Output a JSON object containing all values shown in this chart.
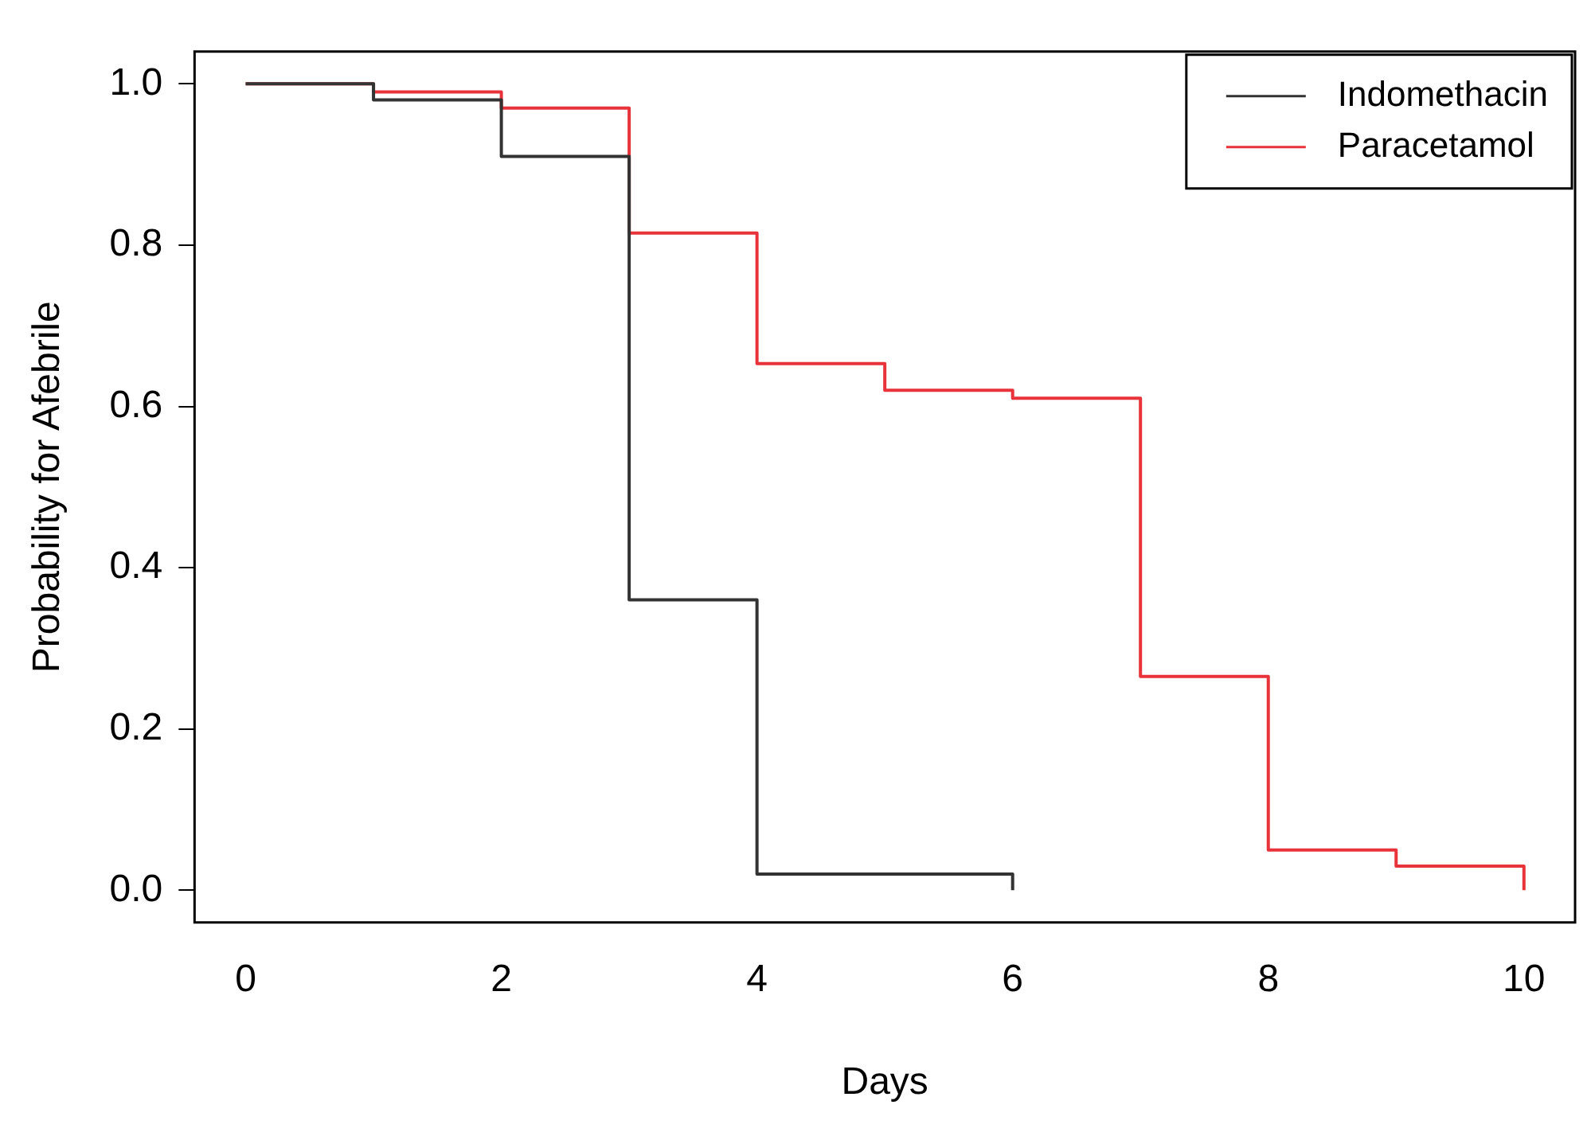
{
  "chart_data": {
    "type": "step",
    "xlabel": "Days",
    "ylabel": "Probability for Afebrile",
    "xlim": [
      -0.4,
      10.4
    ],
    "xticks": [
      0,
      2,
      4,
      6,
      8,
      10
    ],
    "ylim": [
      -0.04,
      1.04
    ],
    "yticks": [
      {
        "value": 0,
        "label": "0.0"
      },
      {
        "value": 0.2,
        "label": "0.2"
      },
      {
        "value": 0.4,
        "label": "0.4"
      },
      {
        "value": 0.6,
        "label": "0.6"
      },
      {
        "value": 0.8,
        "label": "0.8"
      },
      {
        "value": 1,
        "label": "1.0"
      }
    ],
    "grid": false,
    "legend": "top right",
    "marker": "none",
    "line_style": "solid",
    "series": [
      {
        "name": "Indomethacin",
        "color": "#333333",
        "x": [
          0,
          1,
          2,
          3,
          4,
          6
        ],
        "values": [
          1,
          0.98,
          0.91,
          0.36,
          0.02,
          0
        ]
      },
      {
        "name": "Paracetamol",
        "color": "#e8333a",
        "x": [
          0,
          1,
          2,
          3,
          4,
          5,
          6,
          7,
          8,
          9,
          10
        ],
        "values": [
          1,
          0.99,
          0.97,
          0.815,
          0.653,
          0.62,
          0.61,
          0.265,
          0.05,
          0.03,
          0
        ]
      }
    ]
  }
}
